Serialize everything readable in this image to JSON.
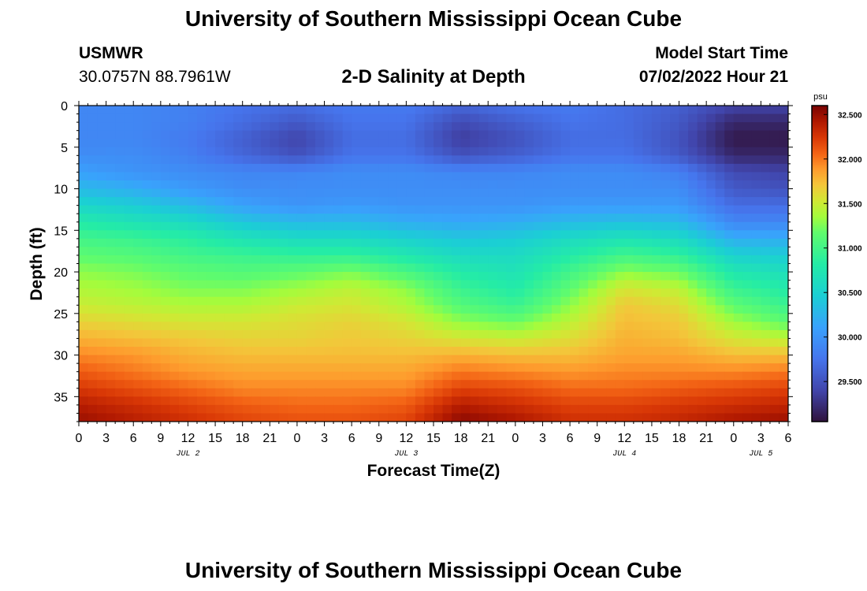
{
  "header": {
    "title": "University of Southern Mississippi Ocean Cube",
    "station_name": "USMWR",
    "station_coords": "30.0757N  88.7961W",
    "subtitle": "2-D Salinity at Depth",
    "model_label": "Model Start Time",
    "model_time": "07/02/2022 Hour 21"
  },
  "footer": {
    "title": "University of Southern Mississippi Ocean Cube"
  },
  "colors": {
    "low": "#30123b",
    "high": "#7a0403"
  },
  "chart_data": {
    "type": "heatmap",
    "title": "2-D Salinity at Depth",
    "xlabel": "Forecast Time(Z)",
    "ylabel": "Depth (ft)",
    "x_hours": [
      0,
      3,
      6,
      9,
      12,
      15,
      18,
      21,
      24,
      27,
      30,
      33,
      36,
      39,
      42,
      45,
      48,
      51,
      54,
      57,
      60,
      63,
      66,
      69,
      72,
      75,
      78
    ],
    "x_tick_labels": [
      "0",
      "3",
      "6",
      "9",
      "12",
      "15",
      "18",
      "21",
      "0",
      "3",
      "6",
      "9",
      "12",
      "15",
      "18",
      "21",
      "0",
      "3",
      "6",
      "9",
      "12",
      "15",
      "18",
      "21",
      "0",
      "3",
      "6"
    ],
    "day_labels": [
      {
        "label": "JUL 2",
        "hour": 12
      },
      {
        "label": "JUL 3",
        "hour": 36
      },
      {
        "label": "JUL 4",
        "hour": 60
      },
      {
        "label": "JUL 5",
        "hour": 75
      }
    ],
    "xlim": [
      0,
      78
    ],
    "ylim": [
      0,
      38
    ],
    "y_ticks": [
      0,
      5,
      10,
      15,
      20,
      25,
      30,
      35
    ],
    "y_tick_labels": [
      "0",
      "5",
      "10",
      "15",
      "20",
      "25",
      "30",
      "35"
    ],
    "colorbar": {
      "unit": "psu",
      "range": [
        29.05,
        32.6
      ],
      "ticks": [
        29.5,
        30.0,
        30.5,
        31.0,
        31.5,
        32.0,
        32.5
      ],
      "tick_labels": [
        "29.500",
        "30.000",
        "30.500",
        "31.000",
        "31.500",
        "32.000",
        "32.500"
      ]
    },
    "salinity_grid": {
      "depths_ft": [
        0,
        2,
        4,
        6,
        8,
        10,
        12,
        14,
        16,
        18,
        20,
        22,
        24,
        26,
        28,
        30,
        32,
        34,
        36,
        38
      ],
      "hours": [
        0,
        6,
        12,
        18,
        24,
        30,
        36,
        42,
        48,
        54,
        60,
        66,
        72,
        78
      ],
      "values": [
        [
          29.9,
          29.9,
          29.85,
          29.75,
          29.7,
          29.8,
          29.8,
          29.65,
          29.75,
          29.8,
          29.7,
          29.6,
          29.4,
          29.4
        ],
        [
          29.9,
          29.9,
          29.85,
          29.7,
          29.55,
          29.75,
          29.75,
          29.45,
          29.6,
          29.75,
          29.7,
          29.55,
          29.2,
          29.2
        ],
        [
          29.9,
          29.9,
          29.8,
          29.6,
          29.4,
          29.7,
          29.7,
          29.35,
          29.5,
          29.7,
          29.7,
          29.5,
          29.1,
          29.1
        ],
        [
          29.95,
          29.95,
          29.85,
          29.65,
          29.5,
          29.75,
          29.75,
          29.5,
          29.6,
          29.75,
          29.75,
          29.55,
          29.2,
          29.2
        ],
        [
          30.1,
          30.0,
          29.95,
          29.9,
          29.9,
          29.95,
          29.95,
          29.9,
          29.9,
          29.95,
          29.95,
          29.85,
          29.45,
          29.4
        ],
        [
          30.3,
          30.2,
          30.05,
          29.95,
          29.95,
          29.95,
          29.95,
          29.95,
          29.95,
          29.95,
          29.95,
          29.95,
          29.55,
          29.5
        ],
        [
          30.55,
          30.45,
          30.3,
          30.1,
          30.0,
          30.05,
          30.0,
          30.0,
          30.0,
          30.05,
          30.05,
          30.05,
          29.7,
          29.7
        ],
        [
          30.8,
          30.7,
          30.6,
          30.4,
          30.3,
          30.3,
          30.2,
          30.15,
          30.2,
          30.3,
          30.35,
          30.3,
          29.9,
          29.9
        ],
        [
          31.0,
          30.95,
          30.85,
          30.7,
          30.6,
          30.6,
          30.5,
          30.4,
          30.45,
          30.6,
          30.7,
          30.6,
          30.2,
          30.2
        ],
        [
          31.15,
          31.1,
          31.0,
          30.95,
          30.9,
          30.9,
          30.75,
          30.6,
          30.6,
          30.8,
          31.0,
          30.9,
          30.5,
          30.45
        ],
        [
          31.3,
          31.25,
          31.15,
          31.1,
          31.15,
          31.25,
          31.05,
          30.8,
          30.7,
          31.0,
          31.3,
          31.2,
          30.75,
          30.65
        ],
        [
          31.4,
          31.35,
          31.25,
          31.25,
          31.35,
          31.45,
          31.3,
          30.95,
          30.8,
          31.15,
          31.55,
          31.45,
          30.95,
          30.8
        ],
        [
          31.5,
          31.45,
          31.4,
          31.4,
          31.5,
          31.55,
          31.4,
          31.1,
          30.95,
          31.3,
          31.7,
          31.6,
          31.15,
          30.95
        ],
        [
          31.65,
          31.6,
          31.55,
          31.55,
          31.6,
          31.65,
          31.55,
          31.3,
          31.2,
          31.45,
          31.75,
          31.7,
          31.35,
          31.15
        ],
        [
          31.8,
          31.75,
          31.7,
          31.65,
          31.65,
          31.7,
          31.65,
          31.55,
          31.5,
          31.6,
          31.8,
          31.75,
          31.55,
          31.45
        ],
        [
          31.95,
          31.9,
          31.8,
          31.75,
          31.75,
          31.75,
          31.75,
          31.8,
          31.75,
          31.75,
          31.85,
          31.85,
          31.75,
          31.75
        ],
        [
          32.1,
          32.0,
          31.9,
          31.85,
          31.85,
          31.85,
          31.85,
          32.0,
          31.95,
          31.9,
          31.95,
          31.95,
          31.95,
          32.0
        ],
        [
          32.25,
          32.15,
          32.05,
          31.95,
          31.95,
          31.95,
          31.95,
          32.2,
          32.15,
          32.05,
          32.05,
          32.1,
          32.15,
          32.2
        ],
        [
          32.4,
          32.3,
          32.2,
          32.1,
          32.05,
          32.05,
          32.1,
          32.4,
          32.3,
          32.2,
          32.2,
          32.25,
          32.3,
          32.35
        ],
        [
          32.5,
          32.4,
          32.3,
          32.2,
          32.15,
          32.15,
          32.2,
          32.55,
          32.45,
          32.3,
          32.3,
          32.35,
          32.45,
          32.5
        ]
      ]
    }
  }
}
